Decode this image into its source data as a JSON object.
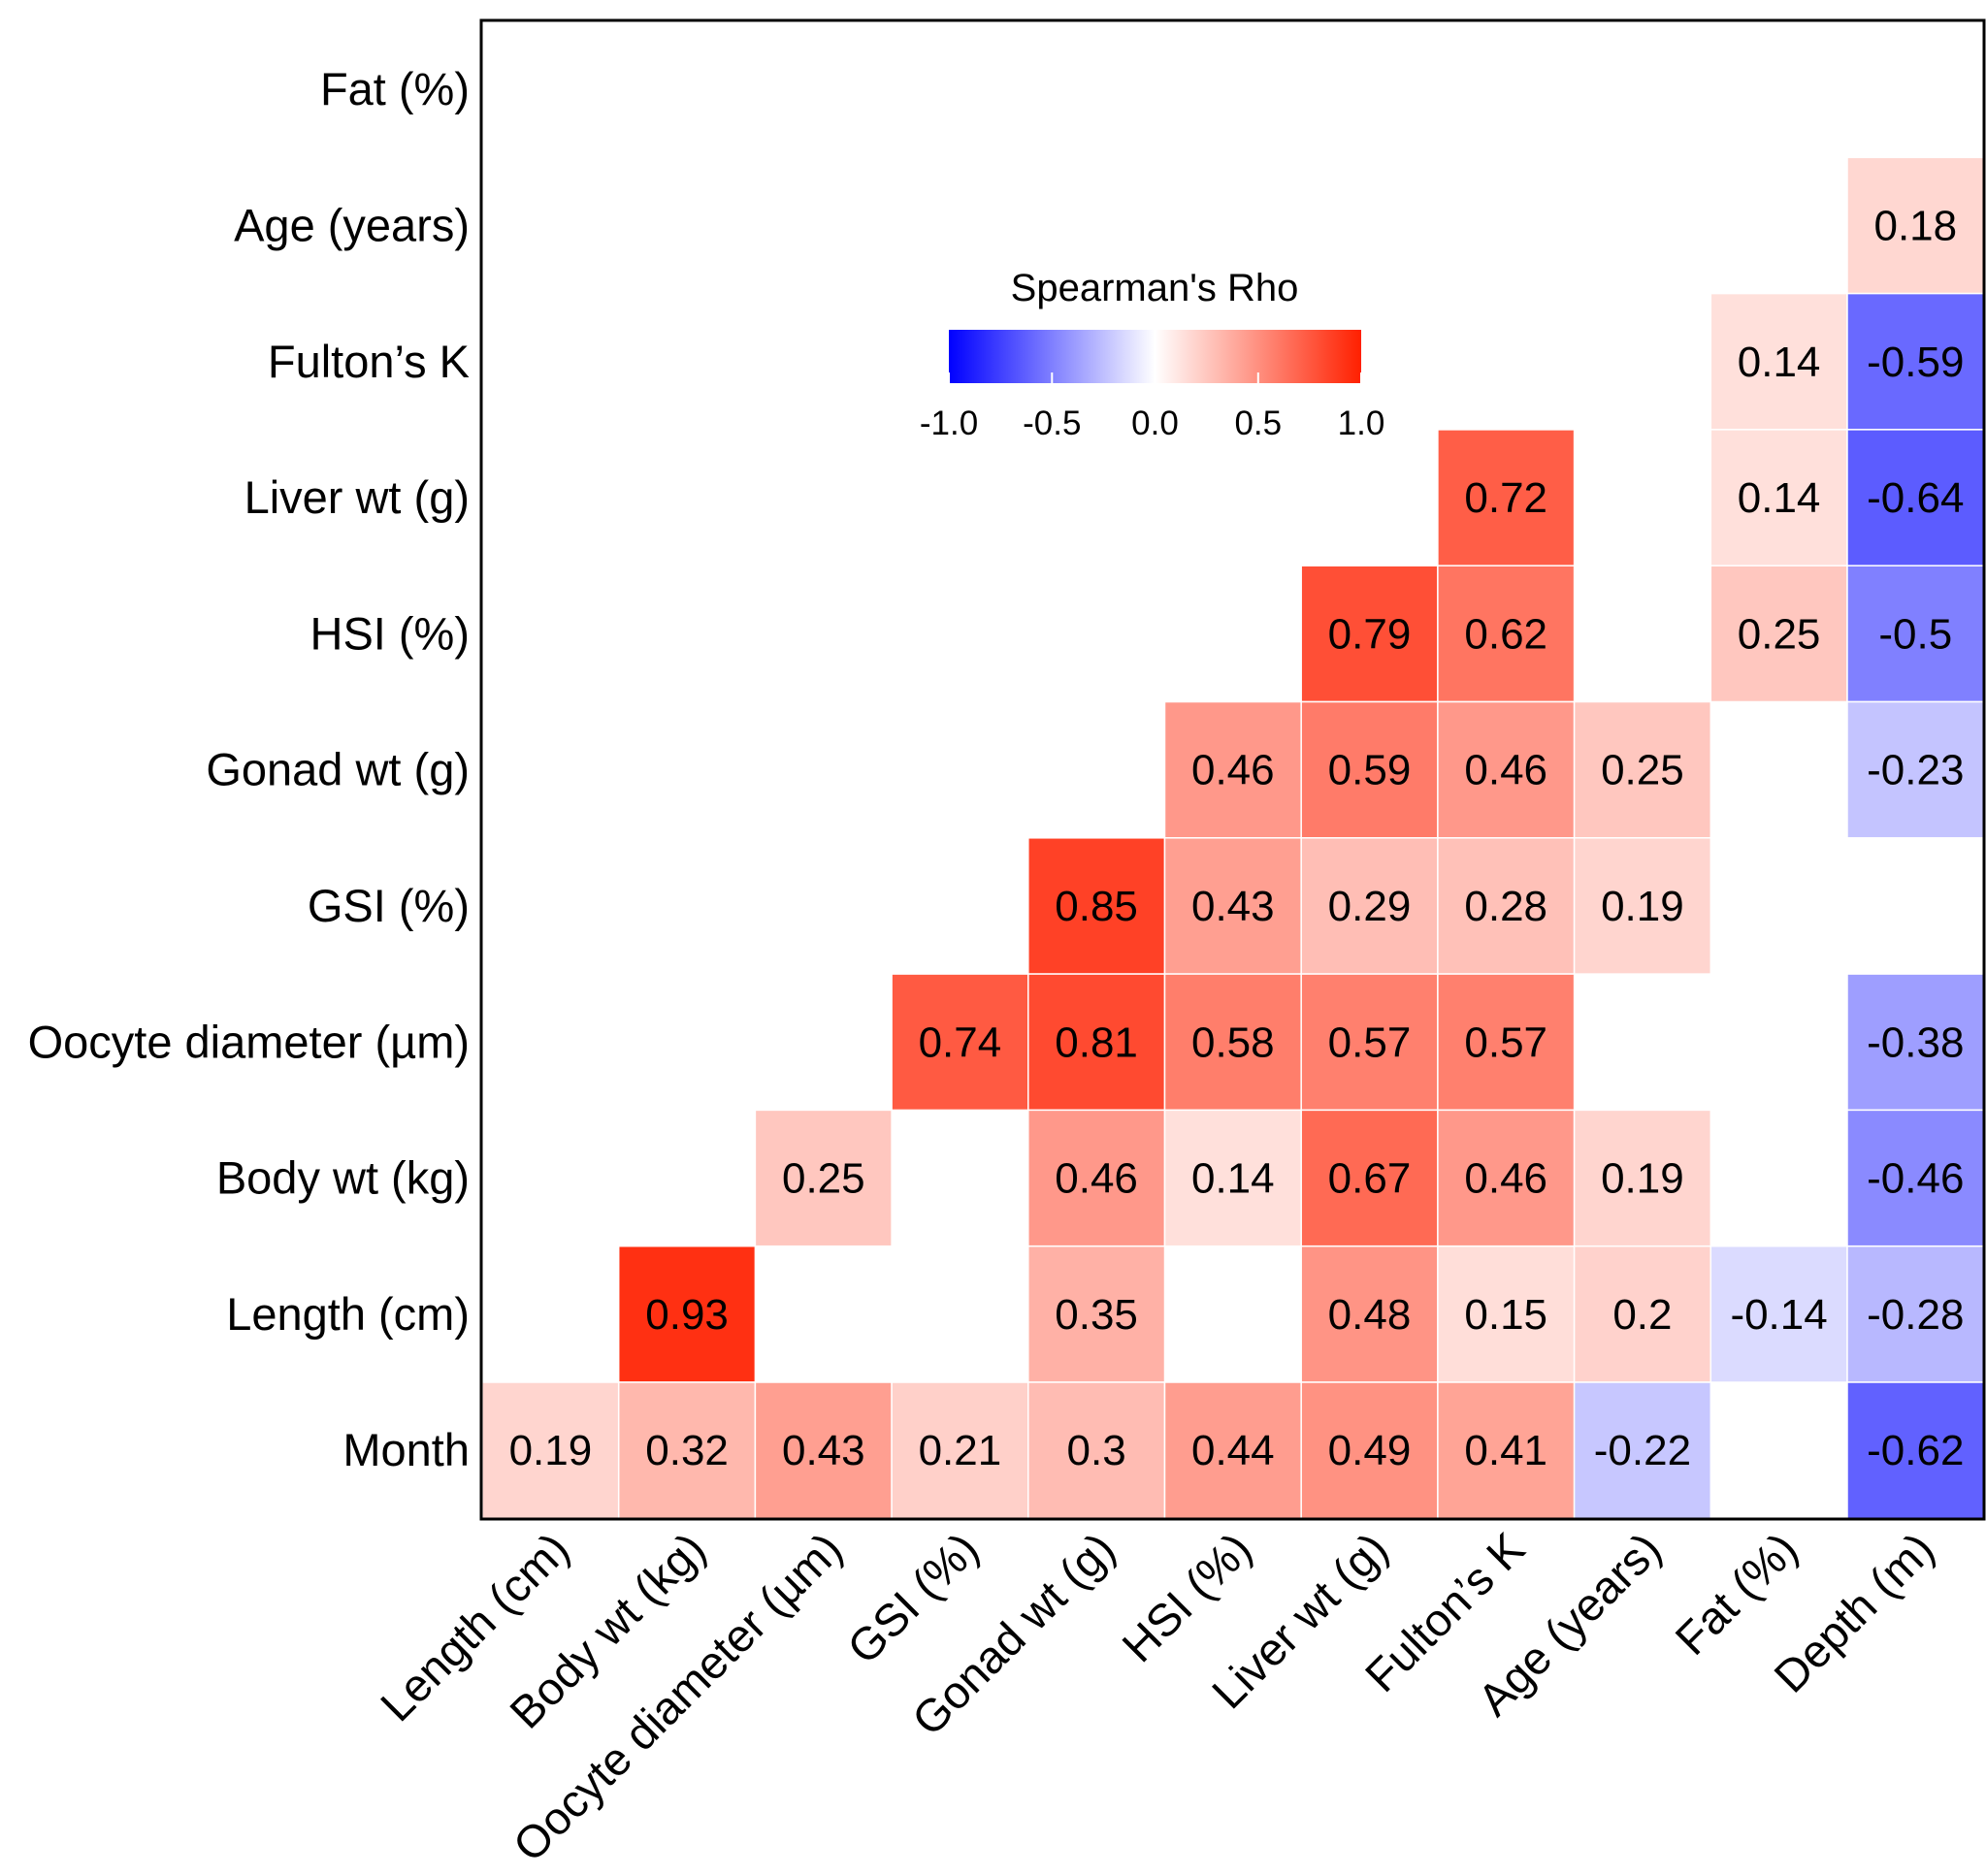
{
  "chart_data": {
    "type": "heatmap",
    "title": "",
    "legend": {
      "title": "Spearman's Rho",
      "min": -1.0,
      "max": 1.0,
      "ticks": [
        "-1.0",
        "-0.5",
        "0.0",
        "0.5",
        "1.0"
      ],
      "colors": {
        "low": "#0000ff",
        "mid": "#ffffff",
        "high": "#ff2000"
      },
      "placement": "top-center (inside plot)"
    },
    "x_labels": [
      "Length (cm)",
      "Body wt (kg)",
      "Oocyte diameter (µm)",
      "GSI (%)",
      "Gonad wt (g)",
      "HSI (%)",
      "Liver wt (g)",
      "Fulton’s K",
      "Age (years)",
      "Fat (%)",
      "Depth (m)"
    ],
    "y_labels": [
      "Fat (%)",
      "Age (years)",
      "Fulton’s K",
      "Liver wt (g)",
      "HSI (%)",
      "Gonad wt (g)",
      "GSI (%)",
      "Oocyte diameter (µm)",
      "Body wt (kg)",
      "Length (cm)",
      "Month"
    ],
    "cells": [
      {
        "row": 1,
        "col": 10,
        "value": 0.18,
        "label": "0.18"
      },
      {
        "row": 2,
        "col": 9,
        "value": 0.14,
        "label": "0.14"
      },
      {
        "row": 2,
        "col": 10,
        "value": -0.59,
        "label": "-0.59"
      },
      {
        "row": 3,
        "col": 7,
        "value": 0.72,
        "label": "0.72"
      },
      {
        "row": 3,
        "col": 9,
        "value": 0.14,
        "label": "0.14"
      },
      {
        "row": 3,
        "col": 10,
        "value": -0.64,
        "label": "-0.64"
      },
      {
        "row": 4,
        "col": 6,
        "value": 0.79,
        "label": "0.79"
      },
      {
        "row": 4,
        "col": 7,
        "value": 0.62,
        "label": "0.62"
      },
      {
        "row": 4,
        "col": 9,
        "value": 0.25,
        "label": "0.25"
      },
      {
        "row": 4,
        "col": 10,
        "value": -0.5,
        "label": "-0.5"
      },
      {
        "row": 5,
        "col": 5,
        "value": 0.46,
        "label": "0.46"
      },
      {
        "row": 5,
        "col": 6,
        "value": 0.59,
        "label": "0.59"
      },
      {
        "row": 5,
        "col": 7,
        "value": 0.46,
        "label": "0.46"
      },
      {
        "row": 5,
        "col": 8,
        "value": 0.25,
        "label": "0.25"
      },
      {
        "row": 5,
        "col": 10,
        "value": -0.23,
        "label": "-0.23"
      },
      {
        "row": 6,
        "col": 4,
        "value": 0.85,
        "label": "0.85"
      },
      {
        "row": 6,
        "col": 5,
        "value": 0.43,
        "label": "0.43"
      },
      {
        "row": 6,
        "col": 6,
        "value": 0.29,
        "label": "0.29"
      },
      {
        "row": 6,
        "col": 7,
        "value": 0.28,
        "label": "0.28"
      },
      {
        "row": 6,
        "col": 8,
        "value": 0.19,
        "label": "0.19"
      },
      {
        "row": 7,
        "col": 3,
        "value": 0.74,
        "label": "0.74"
      },
      {
        "row": 7,
        "col": 4,
        "value": 0.81,
        "label": "0.81"
      },
      {
        "row": 7,
        "col": 5,
        "value": 0.58,
        "label": "0.58"
      },
      {
        "row": 7,
        "col": 6,
        "value": 0.57,
        "label": "0.57"
      },
      {
        "row": 7,
        "col": 7,
        "value": 0.57,
        "label": "0.57"
      },
      {
        "row": 7,
        "col": 10,
        "value": -0.38,
        "label": "-0.38"
      },
      {
        "row": 8,
        "col": 2,
        "value": 0.25,
        "label": "0.25"
      },
      {
        "row": 8,
        "col": 4,
        "value": 0.46,
        "label": "0.46"
      },
      {
        "row": 8,
        "col": 5,
        "value": 0.14,
        "label": "0.14"
      },
      {
        "row": 8,
        "col": 6,
        "value": 0.67,
        "label": "0.67"
      },
      {
        "row": 8,
        "col": 7,
        "value": 0.46,
        "label": "0.46"
      },
      {
        "row": 8,
        "col": 8,
        "value": 0.19,
        "label": "0.19"
      },
      {
        "row": 8,
        "col": 10,
        "value": -0.46,
        "label": "-0.46"
      },
      {
        "row": 9,
        "col": 1,
        "value": 0.93,
        "label": "0.93"
      },
      {
        "row": 9,
        "col": 4,
        "value": 0.35,
        "label": "0.35"
      },
      {
        "row": 9,
        "col": 6,
        "value": 0.48,
        "label": "0.48"
      },
      {
        "row": 9,
        "col": 7,
        "value": 0.15,
        "label": "0.15"
      },
      {
        "row": 9,
        "col": 8,
        "value": 0.2,
        "label": "0.2"
      },
      {
        "row": 9,
        "col": 9,
        "value": -0.14,
        "label": "-0.14"
      },
      {
        "row": 9,
        "col": 10,
        "value": -0.28,
        "label": "-0.28"
      },
      {
        "row": 10,
        "col": 0,
        "value": 0.19,
        "label": "0.19"
      },
      {
        "row": 10,
        "col": 1,
        "value": 0.32,
        "label": "0.32"
      },
      {
        "row": 10,
        "col": 2,
        "value": 0.43,
        "label": "0.43"
      },
      {
        "row": 10,
        "col": 3,
        "value": 0.21,
        "label": "0.21"
      },
      {
        "row": 10,
        "col": 4,
        "value": 0.3,
        "label": "0.3"
      },
      {
        "row": 10,
        "col": 5,
        "value": 0.44,
        "label": "0.44"
      },
      {
        "row": 10,
        "col": 6,
        "value": 0.49,
        "label": "0.49"
      },
      {
        "row": 10,
        "col": 7,
        "value": 0.41,
        "label": "0.41"
      },
      {
        "row": 10,
        "col": 8,
        "value": -0.22,
        "label": "-0.22"
      },
      {
        "row": 10,
        "col": 10,
        "value": -0.62,
        "label": "-0.62"
      }
    ]
  }
}
